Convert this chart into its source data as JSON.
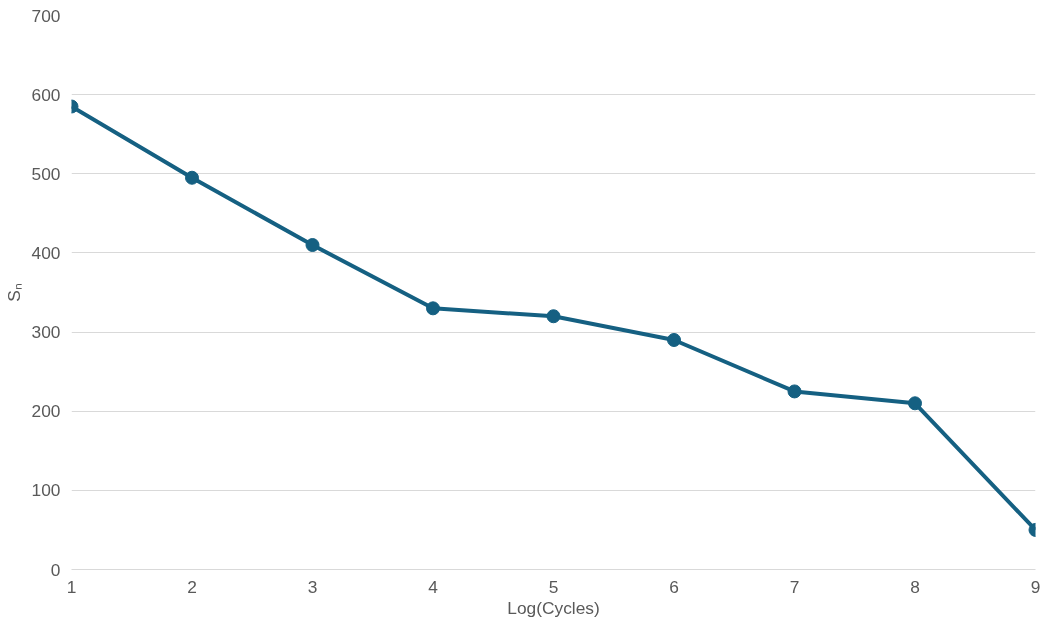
{
  "chart_data": {
    "type": "line",
    "xlabel": "Log(Cycles)",
    "ylabel": "Sₙ",
    "x": [
      1,
      2,
      3,
      4,
      5,
      6,
      7,
      8,
      9
    ],
    "series": [
      {
        "color": "#156082",
        "values": [
          585,
          495,
          410,
          330,
          320,
          290,
          225,
          210,
          50
        ]
      }
    ],
    "xlim": [
      1,
      9
    ],
    "xticks": [
      1,
      2,
      3,
      4,
      5,
      6,
      7,
      8,
      9
    ],
    "ylim": [
      0,
      700
    ],
    "yticks": [
      0,
      100,
      200,
      300,
      400,
      500,
      600,
      700
    ],
    "grid": "y",
    "marker": "circle",
    "line_style": "solid"
  }
}
